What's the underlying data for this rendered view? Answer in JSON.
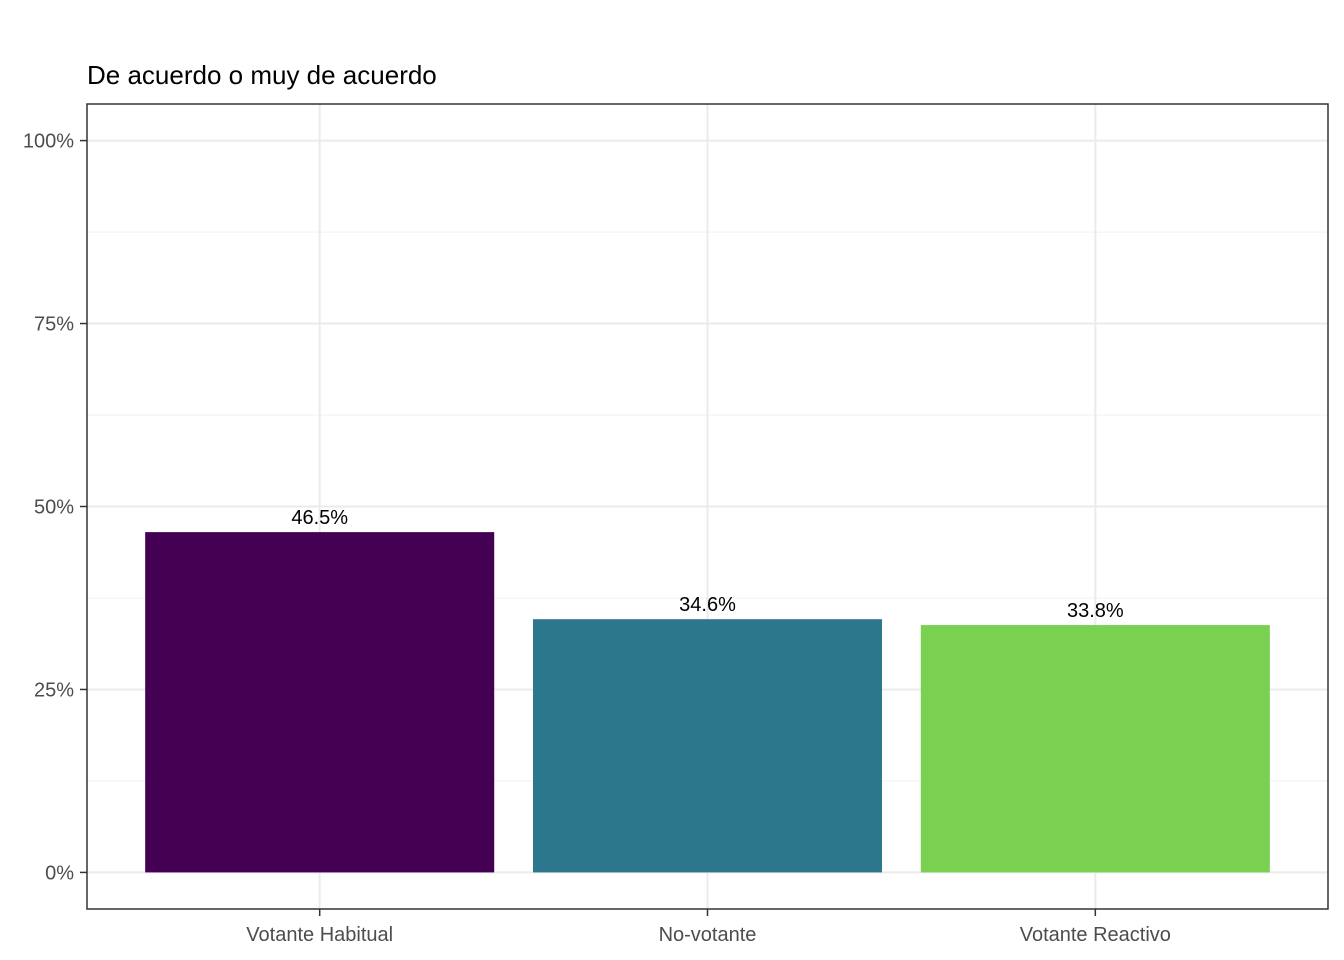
{
  "chart_data": {
    "type": "bar",
    "title": "De acuerdo o muy de acuerdo",
    "xlabel": "",
    "ylabel": "",
    "categories": [
      "Votante Habitual",
      "No-votante",
      "Votante Reactivo"
    ],
    "values": [
      46.5,
      34.6,
      33.8
    ],
    "data_labels": [
      "46.5%",
      "34.6%",
      "33.8%"
    ],
    "colors": [
      "#440154",
      "#2C778B",
      "#7AD151"
    ],
    "ylim": [
      -5,
      105
    ],
    "yticks": [
      0,
      25,
      50,
      75,
      100
    ],
    "ytick_labels": [
      "0%",
      "25%",
      "50%",
      "75%",
      "100%"
    ],
    "grid": true,
    "legend": "none"
  }
}
